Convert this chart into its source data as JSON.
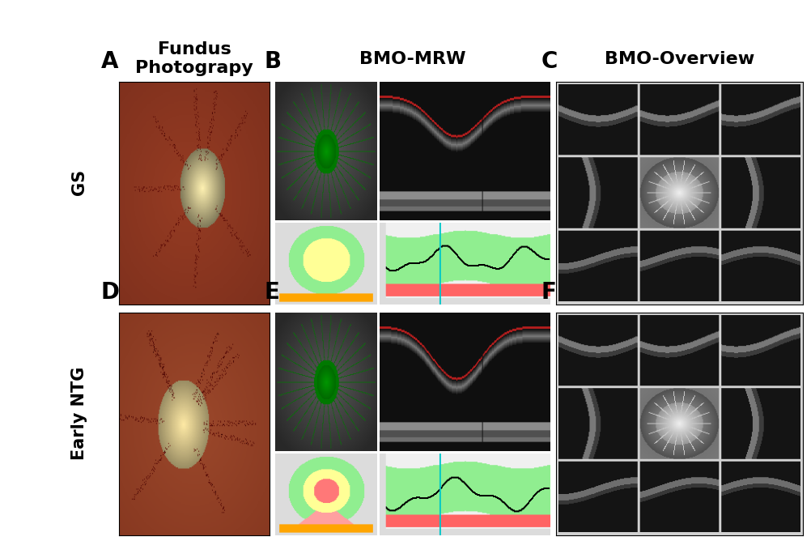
{
  "title_col1_line1": "Fundus",
  "title_col1_line2": "Photograpy",
  "title_col2": "BMO-MRW",
  "title_col3": "BMO-Overview",
  "row_labels": [
    "GS",
    "Early NTG"
  ],
  "panel_labels": [
    "A",
    "B",
    "C",
    "D",
    "E",
    "F"
  ],
  "bg_color": "#ffffff",
  "label_fontsize": 20,
  "header_fontsize": 16,
  "row_label_fontsize": 15,
  "panel_bg_gray": "#d0d0d0",
  "oct_bg": "#111111",
  "nerve_bg": "#888888",
  "chart_bg": "#e0e0e0",
  "green_fill": "#90EE90",
  "red_fill": "#FF6060",
  "orange_bar": "#FFA500",
  "yellow_zone": "#FFFF80",
  "pink_zone": "#FF9090"
}
